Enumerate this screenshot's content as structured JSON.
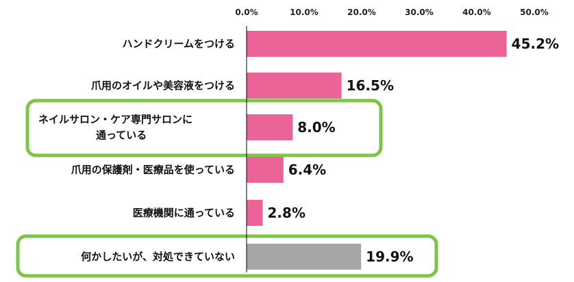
{
  "chart_data": {
    "type": "bar",
    "orientation": "horizontal",
    "title": "",
    "xlabel": "",
    "ylabel": "",
    "xlim": [
      0,
      50
    ],
    "ticks": [
      "0.0%",
      "10.0%",
      "20.0%",
      "30.0%",
      "40.0%",
      "50.0%"
    ],
    "tick_values": [
      0,
      10,
      20,
      30,
      40,
      50
    ],
    "tick_position": "top",
    "grid": false,
    "categories": [
      [
        "ハンドクリームをつける"
      ],
      [
        "爪用のオイルや美容液をつける"
      ],
      [
        "ネイルサロン・ケア専門サロンに",
        "通っている"
      ],
      [
        "爪用の保護剤・医療品を使っている"
      ],
      [
        "医療機関に通っている"
      ],
      [
        "何かしたいが、対処できていない"
      ]
    ],
    "values": [
      45.2,
      16.5,
      8.0,
      6.4,
      2.8,
      19.9
    ],
    "value_labels": [
      "45.2%",
      "16.5%",
      "8.0%",
      "6.4%",
      "2.8%",
      "19.9%"
    ],
    "highlighted": [
      false,
      false,
      true,
      false,
      false,
      true
    ]
  },
  "colors": {
    "bar": "#ea6497",
    "bar_alt": "#a6a6a6",
    "highlight_frame": "#7dc447",
    "axis": "#000000",
    "text": "#111111"
  }
}
